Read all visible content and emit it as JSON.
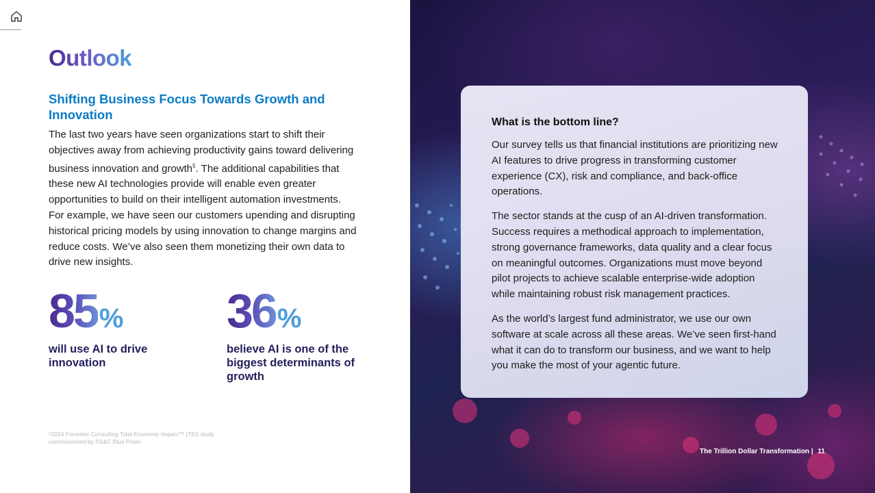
{
  "header": {
    "home_icon": "home-icon"
  },
  "left": {
    "title": "Outlook",
    "subtitle": "Shifting Business Focus Towards Growth and Innovation",
    "body_before_sup": "The last two years have seen organizations start to shift their objectives away from achieving productivity gains toward delivering business innovation and growth",
    "body_sup": "5",
    "body_after_sup": ". The additional capabilities that these new AI technologies provide will enable even greater opportunities to build on their intelligent automation investments. For example, we have seen our customers upending and disrupting historical pricing models by using innovation to change margins and reduce costs. We’ve also seen them monetizing their own data to drive new insights.",
    "stats": [
      {
        "number": "85",
        "unit": "%",
        "description": "will use AI to drive innovation"
      },
      {
        "number": "36",
        "unit": "%",
        "description": "believe AI is one of the biggest determinants of growth"
      }
    ],
    "footnote": "⁵2024 Forrester Consulting Total Economic Impact™ (TEI) study commissioned by SS&C Blue Prism."
  },
  "card": {
    "heading": "What is the bottom line?",
    "paragraphs": [
      "Our survey tells us that financial institutions are prioritizing new AI features to drive progress in transforming customer experience (CX), risk and compliance, and back-office operations.",
      "The sector stands at the cusp of an AI-driven transformation. Success requires a methodical approach to implementation, strong governance frameworks, data quality and a clear focus on meaningful outcomes. Organizations must move beyond pilot projects to achieve scalable enterprise-wide adoption while maintaining robust risk management practices.",
      "As the world’s largest fund administrator, we use our own software at scale across all these areas. We’ve seen first-hand what it can do to transform our business, and we want to help you make the most of your agentic future."
    ]
  },
  "footer": {
    "publication": "The Trillion Dollar Transformation",
    "separator": "|",
    "page_number": "11"
  }
}
